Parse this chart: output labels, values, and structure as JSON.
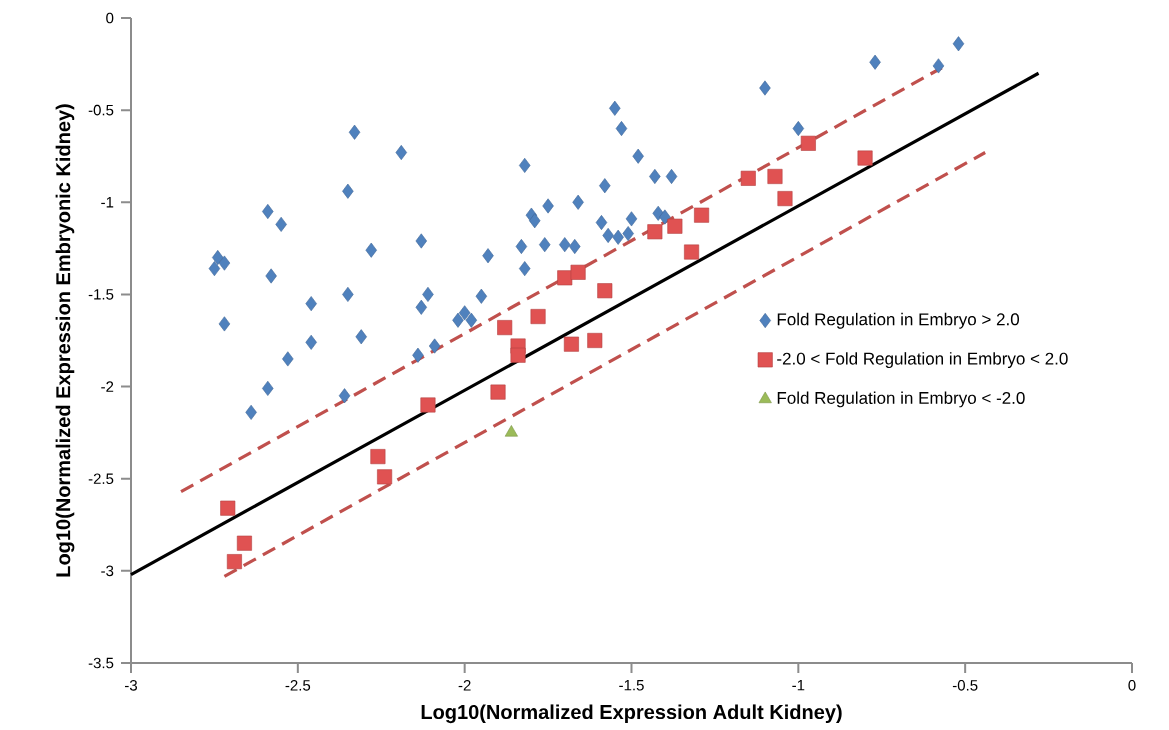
{
  "chart_data": {
    "type": "scatter",
    "xlabel": "Log10(Normalized Expression Adult Kidney)",
    "ylabel": "Log10(Normalized Expression Embryonic Kidney)",
    "xlim": [
      -3,
      0
    ],
    "xticks": [
      -3,
      -2.5,
      -2,
      -1.5,
      -1,
      -0.5,
      0
    ],
    "ylim": [
      -3.5,
      0
    ],
    "yticks": [
      -3.5,
      -3,
      -2.5,
      -2,
      -1.5,
      -1,
      -0.5,
      0
    ],
    "grid": false,
    "legend": "right",
    "series": [
      {
        "name": "Fold Regulation in Embryo > 2.0",
        "marker": "diamond",
        "color": "#4f81bd",
        "x": [
          -2.74,
          -2.75,
          -2.72,
          -2.72,
          -2.64,
          -2.59,
          -2.58,
          -2.59,
          -2.55,
          -2.53,
          -2.46,
          -2.46,
          -2.35,
          -2.35,
          -2.33,
          -2.36,
          -2.31,
          -2.28,
          -2.19,
          -2.13,
          -2.14,
          -2.13,
          -2.11,
          -2.09,
          -2.02,
          -2.0,
          -1.98,
          -1.95,
          -1.93,
          -1.83,
          -1.82,
          -1.82,
          -1.8,
          -1.79,
          -1.76,
          -1.75,
          -1.7,
          -1.67,
          -1.66,
          -1.59,
          -1.58,
          -1.57,
          -1.55,
          -1.53,
          -1.54,
          -1.51,
          -1.5,
          -1.48,
          -1.43,
          -1.42,
          -1.4,
          -1.38,
          -1.1,
          -1.0,
          -0.77,
          -0.58,
          -0.52
        ],
        "values": [
          -1.3,
          -1.36,
          -1.33,
          -1.66,
          -2.14,
          -1.05,
          -1.4,
          -2.01,
          -1.12,
          -1.85,
          -1.55,
          -1.76,
          -0.94,
          -1.5,
          -0.62,
          -2.05,
          -1.73,
          -1.26,
          -0.73,
          -1.21,
          -1.83,
          -1.57,
          -1.5,
          -1.78,
          -1.64,
          -1.6,
          -1.64,
          -1.51,
          -1.29,
          -1.24,
          -0.8,
          -1.36,
          -1.07,
          -1.1,
          -1.23,
          -1.02,
          -1.23,
          -1.24,
          -1.0,
          -1.11,
          -0.91,
          -1.18,
          -0.49,
          -0.6,
          -1.19,
          -1.17,
          -1.09,
          -0.75,
          -0.86,
          -1.06,
          -1.08,
          -0.86,
          -0.38,
          -0.6,
          -0.24,
          -0.26,
          -0.14
        ]
      },
      {
        "name": "-2.0 < Fold Regulation in Embryo < 2.0",
        "marker": "square",
        "color": "#e05252",
        "x": [
          -2.71,
          -2.69,
          -2.66,
          -2.26,
          -2.24,
          -2.11,
          -1.9,
          -1.88,
          -1.84,
          -1.84,
          -1.78,
          -1.7,
          -1.68,
          -1.66,
          -1.61,
          -1.58,
          -1.43,
          -1.37,
          -1.32,
          -1.29,
          -1.15,
          -1.07,
          -1.04,
          -0.97,
          -0.8
        ],
        "values": [
          -2.66,
          -2.95,
          -2.85,
          -2.38,
          -2.49,
          -2.1,
          -2.03,
          -1.68,
          -1.78,
          -1.83,
          -1.62,
          -1.41,
          -1.77,
          -1.38,
          -1.75,
          -1.48,
          -1.16,
          -1.13,
          -1.27,
          -1.07,
          -0.87,
          -0.86,
          -0.98,
          -0.68,
          -0.76
        ]
      },
      {
        "name": "Fold Regulation in Embryo < -2.0",
        "marker": "triangle",
        "color": "#9bbb59",
        "x": [
          -1.86
        ],
        "values": [
          -2.25
        ]
      },
      {
        "type": "line",
        "marker": "none",
        "line_style": "solid",
        "color": "#000000",
        "x": [
          -3.0,
          -0.28
        ],
        "values": [
          -3.02,
          -0.3
        ]
      },
      {
        "type": "line",
        "marker": "none",
        "line_style": "dashed",
        "color": "#c0504d",
        "x": [
          -2.85,
          -0.57
        ],
        "values": [
          -2.57,
          -0.27
        ]
      },
      {
        "type": "line",
        "marker": "none",
        "line_style": "dashed",
        "color": "#c0504d",
        "x": [
          -2.72,
          -0.44
        ],
        "values": [
          -3.03,
          -0.73
        ]
      }
    ]
  }
}
